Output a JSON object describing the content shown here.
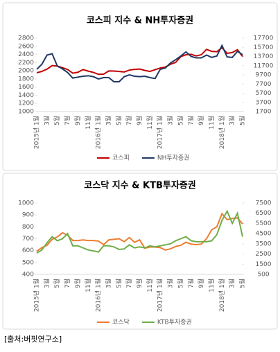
{
  "chart_data": [
    {
      "type": "line",
      "title": "코스피 지수 & NH투자증권",
      "categories": [
        "2015년 1월",
        null,
        "3월",
        null,
        "5월",
        null,
        "7월",
        null,
        "9월",
        null,
        "11월",
        null,
        "2016년 1월",
        null,
        "3월",
        null,
        "5월",
        null,
        "7월",
        null,
        "9월",
        null,
        "11월",
        null,
        "2017년 1월",
        null,
        "3월",
        null,
        "5월",
        null,
        "7월",
        null,
        "9월",
        null,
        "11월",
        null,
        "2018년 1월",
        null,
        "3월",
        null,
        "5월"
      ],
      "series": [
        {
          "name": "코스피",
          "color": "#c00000",
          "values": [
            1950,
            1985,
            2040,
            2127,
            2115,
            2074,
            2030,
            1941,
            1963,
            2029,
            1991,
            1961,
            1912,
            1916,
            1995,
            1994,
            1983,
            1970,
            2016,
            2034,
            2043,
            2008,
            1983,
            2026,
            2067,
            2091,
            2160,
            2205,
            2347,
            2392,
            2402,
            2363,
            2394,
            2523,
            2476,
            2467,
            2566,
            2427,
            2445,
            2515,
            2350
          ]
        },
        {
          "name": "NH투자증권",
          "color": "#1f3864",
          "axis": "y2",
          "values": [
            10900,
            12000,
            14000,
            14300,
            11600,
            11000,
            10200,
            9000,
            9200,
            9400,
            9500,
            9300,
            8800,
            9100,
            9100,
            8200,
            8200,
            9300,
            9700,
            9400,
            9300,
            9400,
            9100,
            8900,
            10900,
            11200,
            12300,
            13000,
            13800,
            14700,
            13700,
            13400,
            13400,
            14000,
            13500,
            13800,
            16100,
            13600,
            13500,
            14800,
            14100
          ]
        }
      ],
      "ylim": [
        1000,
        2800
      ],
      "yticks": [
        1000,
        1200,
        1400,
        1600,
        1800,
        2000,
        2200,
        2400,
        2600,
        2800
      ],
      "y2lim": [
        1700,
        17700
      ],
      "y2ticks": [
        1700,
        3700,
        5700,
        7700,
        9700,
        11700,
        13700,
        15700,
        17700
      ],
      "legend": "bottom"
    },
    {
      "type": "line",
      "title": "코스닥 지수 & KTB투자증권",
      "categories": [
        "2015년 1월",
        null,
        "3월",
        null,
        "5월",
        null,
        "7월",
        null,
        "9월",
        null,
        "11월",
        null,
        "2016년 1월",
        null,
        "3월",
        null,
        "5월",
        null,
        "7월",
        null,
        "9월",
        null,
        "11월",
        null,
        "2017년 1월",
        null,
        "3월",
        null,
        "5월",
        null,
        "7월",
        null,
        "9월",
        null,
        "11월",
        null,
        "2018년 1월",
        null,
        "3월",
        null,
        "5월"
      ],
      "series": [
        {
          "name": "코스닥",
          "color": "#ed7d31",
          "values": [
            595,
            625,
            645,
            695,
            715,
            750,
            730,
            685,
            685,
            690,
            685,
            685,
            680,
            650,
            690,
            695,
            700,
            675,
            710,
            670,
            690,
            620,
            630,
            630,
            625,
            605,
            615,
            635,
            645,
            670,
            655,
            650,
            655,
            700,
            775,
            800,
            910,
            860,
            870,
            875,
            825
          ]
        },
        {
          "name": "KTB투자증권",
          "color": "#70ad47",
          "axis": "y2",
          "values": [
            2600,
            2900,
            3600,
            4200,
            3800,
            4000,
            4500,
            3300,
            3300,
            3100,
            2900,
            2800,
            2700,
            3300,
            3300,
            3200,
            2950,
            3000,
            3400,
            3100,
            3200,
            3100,
            3300,
            3200,
            3300,
            3400,
            3500,
            3800,
            4000,
            4200,
            3800,
            3700,
            3700,
            3700,
            3800,
            4400,
            5800,
            6700,
            5500,
            6500,
            4200
          ]
        }
      ],
      "ylim": [
        400,
        1000
      ],
      "yticks": [
        400,
        500,
        600,
        700,
        800,
        900,
        1000
      ],
      "y2lim": [
        500,
        7500
      ],
      "y2ticks": [
        500,
        1500,
        2500,
        3500,
        4500,
        5500,
        6500,
        7500
      ],
      "legend": "bottom"
    }
  ],
  "footnote": "[출처:버핏연구소]"
}
